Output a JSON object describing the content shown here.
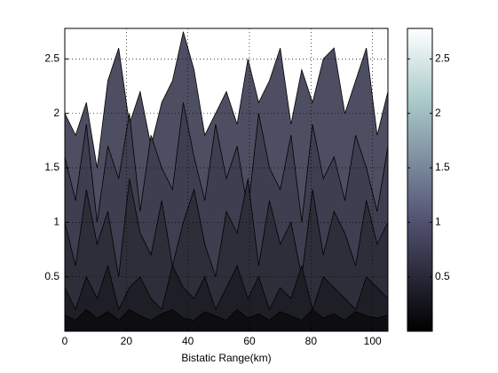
{
  "chart_data": {
    "type": "surface-profile",
    "xlabel": "Bistatic Range(km)",
    "x": [
      0,
      3.5,
      7,
      10.5,
      14,
      17.5,
      21,
      24.5,
      28,
      31.5,
      35,
      38.5,
      42,
      45.5,
      49,
      52.5,
      56,
      59.5,
      63,
      66.5,
      70,
      73.5,
      77,
      80.5,
      84,
      87.5,
      91,
      94.5,
      98,
      101.5,
      105
    ],
    "series": [
      {
        "color": "#4e4e62",
        "values": [
          2.0,
          1.8,
          2.1,
          1.5,
          2.3,
          2.6,
          1.9,
          2.2,
          1.7,
          2.1,
          2.3,
          2.75,
          2.4,
          1.8,
          2.0,
          2.2,
          1.9,
          2.5,
          2.1,
          2.3,
          2.6,
          1.9,
          2.4,
          2.1,
          2.5,
          2.6,
          2.0,
          2.3,
          2.6,
          1.8,
          2.2
        ]
      },
      {
        "color": "#3e3e50",
        "values": [
          1.6,
          1.2,
          1.9,
          1.0,
          1.7,
          1.4,
          2.0,
          1.1,
          1.8,
          1.5,
          1.3,
          2.1,
          1.6,
          1.2,
          1.9,
          1.4,
          1.7,
          1.1,
          2.0,
          1.5,
          1.3,
          1.8,
          1.0,
          1.9,
          1.4,
          1.6,
          1.2,
          1.8,
          1.5,
          1.1,
          1.7
        ]
      },
      {
        "color": "#2e2e3a",
        "values": [
          1.0,
          0.6,
          1.3,
          0.8,
          1.1,
          0.5,
          1.4,
          0.9,
          0.7,
          1.2,
          0.6,
          1.0,
          1.3,
          0.8,
          0.5,
          1.1,
          0.9,
          1.4,
          0.6,
          1.2,
          0.8,
          1.0,
          0.5,
          1.3,
          0.7,
          1.1,
          0.9,
          0.6,
          1.2,
          0.8,
          1.0
        ]
      },
      {
        "color": "#1e1e26",
        "values": [
          0.4,
          0.2,
          0.5,
          0.3,
          0.6,
          0.2,
          0.4,
          0.5,
          0.3,
          0.2,
          0.6,
          0.4,
          0.3,
          0.5,
          0.2,
          0.4,
          0.6,
          0.3,
          0.5,
          0.2,
          0.4,
          0.3,
          0.6,
          0.2,
          0.5,
          0.4,
          0.3,
          0.2,
          0.5,
          0.4,
          0.3
        ]
      },
      {
        "color": "#0e0e12",
        "values": [
          0.15,
          0.1,
          0.2,
          0.12,
          0.18,
          0.1,
          0.2,
          0.14,
          0.1,
          0.16,
          0.2,
          0.12,
          0.1,
          0.18,
          0.14,
          0.1,
          0.2,
          0.12,
          0.16,
          0.1,
          0.18,
          0.14,
          0.1,
          0.2,
          0.12,
          0.16,
          0.1,
          0.18,
          0.14,
          0.12,
          0.15
        ]
      }
    ],
    "xlim": [
      0,
      105
    ],
    "xticks": [
      0,
      20,
      40,
      60,
      80,
      100
    ],
    "ylim": [
      0,
      2.78
    ],
    "yticks": [
      0.5,
      1,
      1.5,
      2,
      2.5
    ],
    "grid": true,
    "colorbar": {
      "lim": [
        0,
        2.78
      ],
      "ticks": [
        0.5,
        1,
        1.5,
        2,
        2.5
      ]
    }
  }
}
